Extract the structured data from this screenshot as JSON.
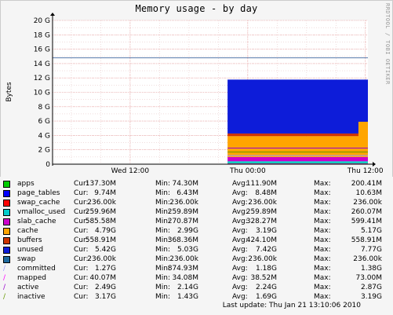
{
  "title": "Memory usage - by day",
  "watermark": "RRDTOOL / TOBI OETIKER",
  "chart_data": {
    "type": "area",
    "ylabel": "Bytes",
    "ylim": [
      0,
      20
    ],
    "yunit": "G",
    "yticks": [
      "0",
      "2 G",
      "4 G",
      "6 G",
      "8 G",
      "10 G",
      "12 G",
      "14 G",
      "16 G",
      "18 G",
      "20 G"
    ],
    "ytick_values": [
      0,
      2,
      4,
      6,
      8,
      10,
      12,
      14,
      16,
      18,
      20
    ],
    "xticks": [
      {
        "label": "Wed 12:00",
        "pos": 0.246
      },
      {
        "label": "Thu 00:00",
        "pos": 0.619
      },
      {
        "label": "Thu 12:00",
        "pos": 0.992
      }
    ],
    "hline": {
      "value": 14.8,
      "label": ""
    },
    "data_start_fraction": 0.555,
    "grid": true,
    "stack": [
      {
        "name": "apps",
        "color": "#00cc00",
        "value": 0.137
      },
      {
        "name": "page_tables",
        "color": "#0000ff",
        "value": 0.01
      },
      {
        "name": "swap_cache",
        "color": "#ff0000",
        "value": 0.0002
      },
      {
        "name": "vmalloc_used",
        "color": "#00cccc",
        "value": 0.26
      },
      {
        "name": "slab_cache",
        "color": "#cc00cc",
        "value": 0.59
      },
      {
        "name": "cache",
        "color": "#ffa500",
        "value": 2.9
      },
      {
        "name": "buffers",
        "color": "#cc3300",
        "value": 0.37
      },
      {
        "name": "unused",
        "color": "#0d1cd9",
        "value": 7.5
      },
      {
        "name": "swap",
        "color": "#1e6aa0",
        "value": 0.0002
      }
    ],
    "lines": [
      {
        "name": "committed",
        "color": "#9999ff",
        "value": 1.2
      },
      {
        "name": "mapped",
        "color": "#ff00ff",
        "value": 0.04
      },
      {
        "name": "active",
        "color": "#9900cc",
        "value": 2.24
      },
      {
        "name": "inactive",
        "color": "#669900",
        "value": 1.7
      }
    ]
  },
  "legend": [
    {
      "name": "apps",
      "type": "area",
      "color": "#00cc00",
      "cur": "137.30M",
      "min": "74.30M",
      "avg": "111.90M",
      "max": "200.41M"
    },
    {
      "name": "page_tables",
      "type": "area",
      "color": "#0000ff",
      "cur": "9.74M",
      "min": "6.43M",
      "avg": "8.48M",
      "max": "10.63M"
    },
    {
      "name": "swap_cache",
      "type": "area",
      "color": "#ff0000",
      "cur": "236.00k",
      "min": "236.00k",
      "avg": "236.00k",
      "max": "236.00k"
    },
    {
      "name": "vmalloc_used",
      "type": "area",
      "color": "#00cccc",
      "cur": "259.96M",
      "min": "259.89M",
      "avg": "259.89M",
      "max": "260.07M"
    },
    {
      "name": "slab_cache",
      "type": "area",
      "color": "#cc00cc",
      "cur": "585.58M",
      "min": "270.87M",
      "avg": "328.27M",
      "max": "599.41M"
    },
    {
      "name": "cache",
      "type": "area",
      "color": "#ffa500",
      "cur": "4.79G",
      "min": "2.99G",
      "avg": "3.19G",
      "max": "5.17G"
    },
    {
      "name": "buffers",
      "type": "area",
      "color": "#cc3300",
      "cur": "558.91M",
      "min": "368.36M",
      "avg": "424.10M",
      "max": "558.91M"
    },
    {
      "name": "unused",
      "type": "area",
      "color": "#0d1cd9",
      "cur": "5.42G",
      "min": "5.03G",
      "avg": "7.42G",
      "max": "7.77G"
    },
    {
      "name": "swap",
      "type": "area",
      "color": "#1e6aa0",
      "cur": "236.00k",
      "min": "236.00k",
      "avg": "236.00k",
      "max": "236.00k"
    },
    {
      "name": "committed",
      "type": "line",
      "color": "#9999ff",
      "cur": "1.27G",
      "min": "874.93M",
      "avg": "1.18G",
      "max": "1.38G"
    },
    {
      "name": "mapped",
      "type": "line",
      "color": "#ff00ff",
      "cur": "40.07M",
      "min": "34.08M",
      "avg": "38.52M",
      "max": "73.00M"
    },
    {
      "name": "active",
      "type": "line",
      "color": "#9900cc",
      "cur": "2.49G",
      "min": "2.14G",
      "avg": "2.24G",
      "max": "2.87G"
    },
    {
      "name": "inactive",
      "type": "line",
      "color": "#669900",
      "cur": "3.17G",
      "min": "1.43G",
      "avg": "1.69G",
      "max": "3.19G"
    }
  ],
  "labels": {
    "cur": "Cur:",
    "min": "Min:",
    "avg": "Avg:",
    "max": "Max:"
  },
  "last_update": "Last update: Thu Jan 21 13:10:06 2010"
}
